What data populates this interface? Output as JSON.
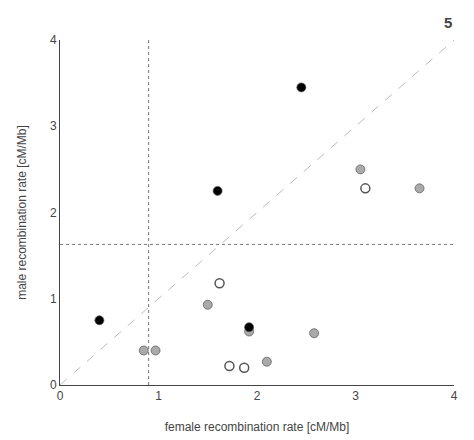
{
  "chart_data": {
    "type": "scatter",
    "xlabel": "female recombination rate [cM/Mb]",
    "ylabel": "male recombination rate [cM/Mb]",
    "xlim": [
      0,
      4
    ],
    "ylim": [
      0,
      4
    ],
    "xticks": [
      0,
      1,
      2,
      3,
      4
    ],
    "yticks": [
      0,
      1,
      2,
      3,
      4
    ],
    "grid": false,
    "series": [
      {
        "type": "line",
        "line_style": "dashed",
        "color": "#bbbbbb",
        "x": [
          0,
          4
        ],
        "values": [
          0,
          4
        ]
      },
      {
        "type": "scatter",
        "marker": "circle",
        "color": "#aaaaaa",
        "x": [
          0.85,
          0.97,
          1.5,
          1.92,
          2.1,
          2.58,
          3.05,
          3.65
        ],
        "values": [
          0.4,
          0.4,
          0.93,
          0.62,
          0.27,
          0.6,
          2.5,
          2.28
        ]
      },
      {
        "type": "scatter",
        "marker": "circle-open",
        "color": "#555555",
        "x": [
          1.62,
          1.72,
          1.87,
          3.1
        ],
        "values": [
          1.18,
          0.22,
          0.2,
          2.28
        ]
      },
      {
        "type": "scatter",
        "marker": "circle",
        "color": "#000000",
        "x": [
          0.4,
          1.6,
          2.45,
          1.92
        ],
        "values": [
          0.75,
          2.25,
          3.45,
          0.67
        ]
      }
    ],
    "reference_lines": [
      {
        "x": 0.9,
        "color": "#777777",
        "line_style": "dotted"
      },
      {
        "y": 1.63,
        "color": "#777777",
        "line_style": "dotted"
      }
    ],
    "annotations": [
      {
        "text": "5"
      }
    ]
  }
}
